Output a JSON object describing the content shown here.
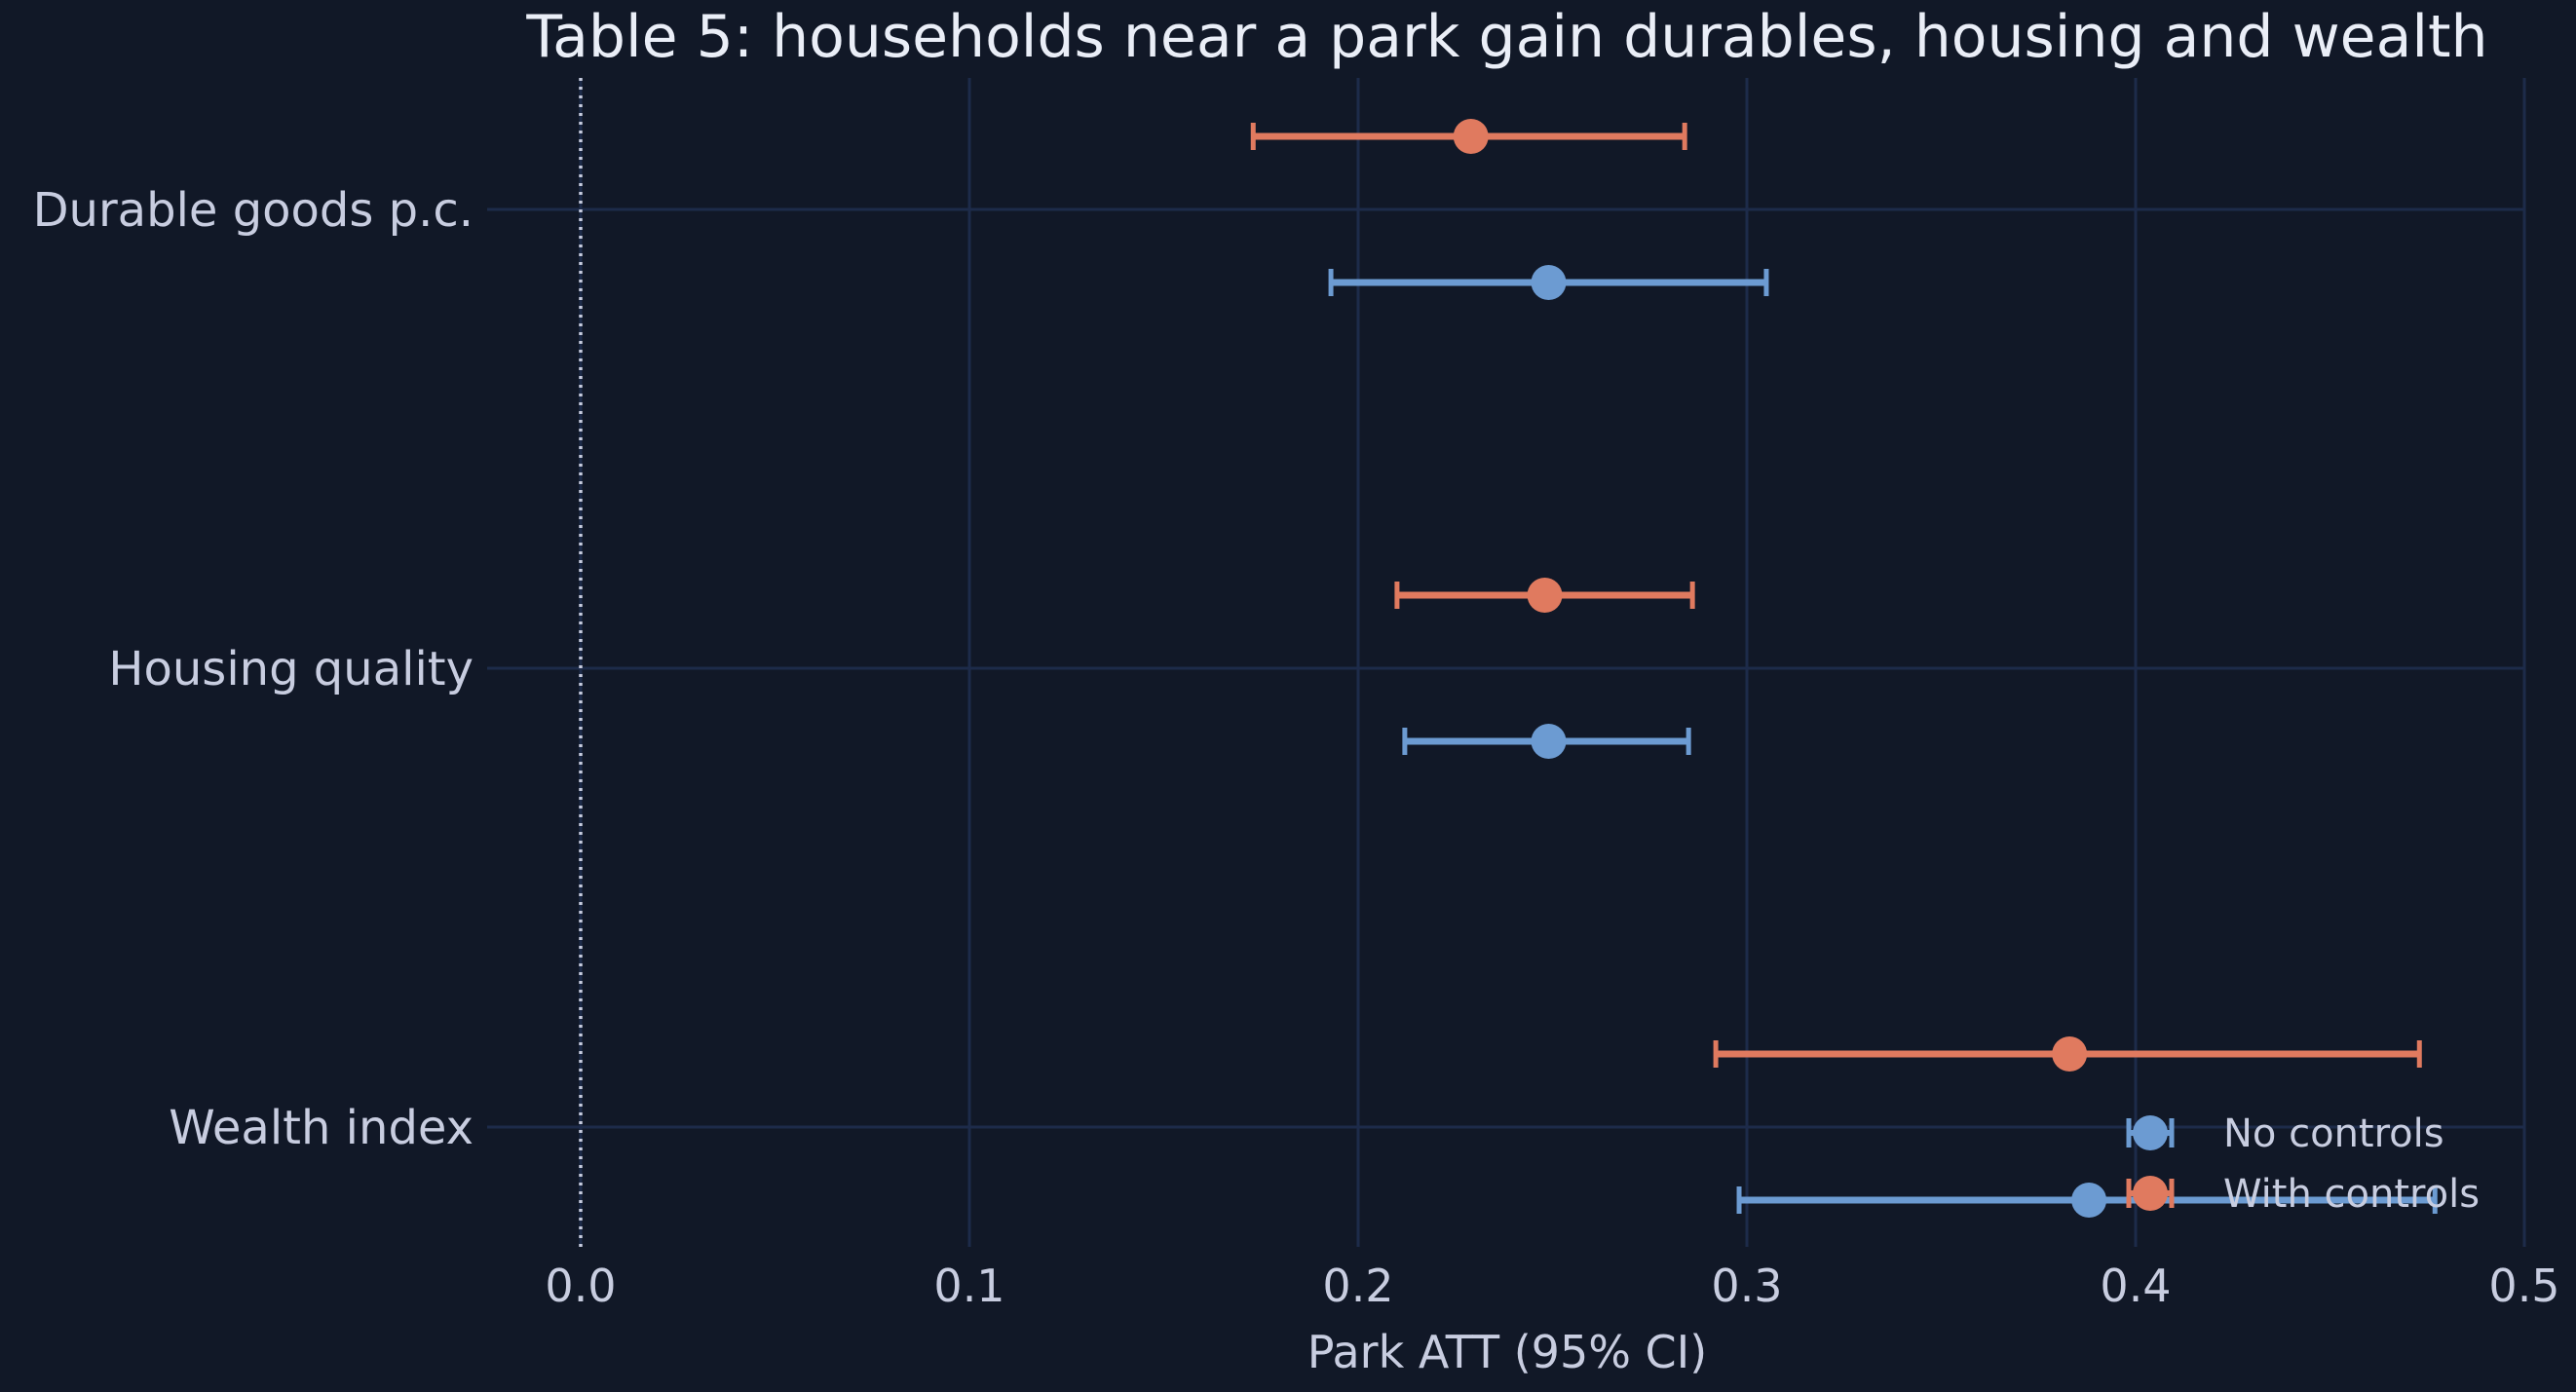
{
  "chart_data": {
    "type": "scatter",
    "subtype": "coefficient-plot-horizontal-error-bars",
    "title": "Table 5: households near a park gain durables, housing and wealth",
    "xlabel": "Park ATT (95% CI)",
    "ylabel": "",
    "xlim": [
      -0.025,
      0.5
    ],
    "xticks": [
      0.0,
      0.1,
      0.2,
      0.3,
      0.4,
      0.5
    ],
    "xtick_labels": [
      "0.0",
      "0.1",
      "0.2",
      "0.3",
      "0.4",
      "0.5"
    ],
    "categories": [
      "Durable goods p.c.",
      "Housing quality",
      "Wealth index"
    ],
    "reference_line": {
      "x": 0.0,
      "style": "dotted"
    },
    "grid": true,
    "legend_position": "lower-right",
    "series": [
      {
        "name": "No controls",
        "color": "#6c9bd2",
        "estimates": [
          0.249,
          0.249,
          0.388
        ],
        "ci_low": [
          0.193,
          0.212,
          0.298
        ],
        "ci_high": [
          0.305,
          0.285,
          0.477
        ]
      },
      {
        "name": "With controls",
        "color": "#e07a5f",
        "estimates": [
          0.229,
          0.248,
          0.383
        ],
        "ci_low": [
          0.173,
          0.21,
          0.292
        ],
        "ci_high": [
          0.284,
          0.286,
          0.473
        ]
      }
    ]
  },
  "colors": {
    "background": "#111827",
    "grid": "#1d2b4a",
    "reference_line": "#c8cde0",
    "text": "#c8cde0",
    "title": "#eaeef7"
  }
}
